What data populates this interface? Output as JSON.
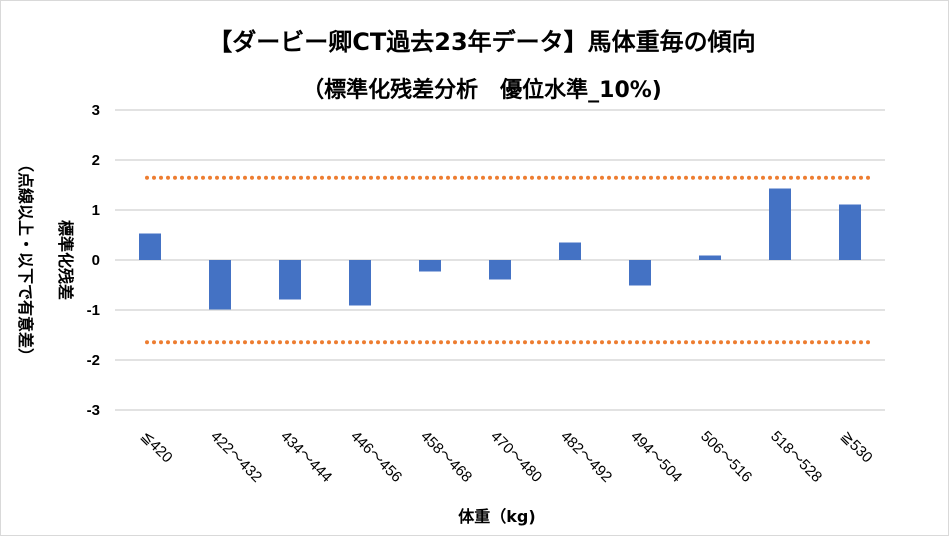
{
  "chart_data": {
    "type": "bar",
    "title": "【ダービー卿CT過去23年データ】馬体重毎の傾向",
    "subtitle": "（標準化残差分析　優位水準_10%)",
    "xlabel": "体重（kg)",
    "ylabel": "標準化残差",
    "ylabel_note": "（点線以上・以下で有意差）",
    "categories": [
      "≦420",
      "422～432",
      "434～444",
      "446～456",
      "458～468",
      "470～480",
      "482～492",
      "494～504",
      "506～516",
      "518～528",
      "≧530"
    ],
    "values": [
      0.53,
      -0.99,
      -0.79,
      -0.91,
      -0.23,
      -0.39,
      0.35,
      -0.51,
      0.09,
      1.43,
      1.11
    ],
    "ylim": [
      -3,
      3
    ],
    "yticks": [
      3,
      2,
      1,
      0,
      -1,
      -2,
      -3
    ],
    "threshold_lines": [
      1.645,
      -1.645
    ],
    "grid": true,
    "bar_color": "#4472C4",
    "threshold_color": "#ED7D31",
    "grid_color": "#D9D9D9"
  }
}
